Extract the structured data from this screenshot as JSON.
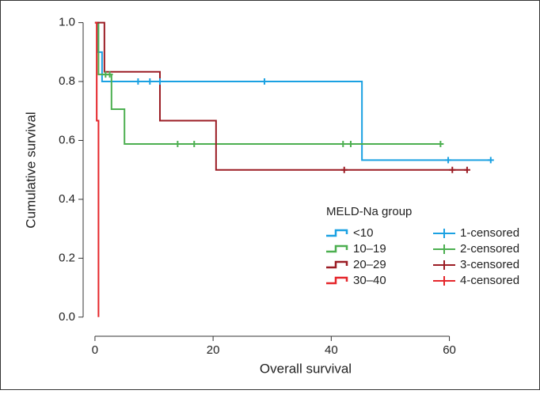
{
  "chart_data": {
    "type": "survival",
    "xlabel": "Overall survival",
    "ylabel": "Cumulative survival",
    "xlim": [
      -2,
      74
    ],
    "ylim": [
      -0.065,
      1.05
    ],
    "xticks": [
      0,
      20,
      40,
      60
    ],
    "yticks": [
      {
        "value": 0,
        "label": "0.0"
      },
      {
        "value": 0.2,
        "label": "0.2"
      },
      {
        "value": 0.4,
        "label": "0.4"
      },
      {
        "value": 0.6,
        "label": "0.6"
      },
      {
        "value": 0.8,
        "label": "0.8"
      },
      {
        "value": 1,
        "label": "1.0"
      }
    ],
    "legend_title": "MELD-Na group",
    "legend_position": "lower right",
    "series": [
      {
        "name": "<10",
        "color": "#1ba1e2",
        "kind": "step",
        "x": [
          0,
          0.5,
          1.2,
          45.2,
          67
        ],
        "values": [
          1,
          0.9,
          0.8,
          0.533,
          0.533
        ]
      },
      {
        "name": "10–19",
        "color": "#4caf50",
        "kind": "step",
        "x": [
          0,
          0.6,
          2.8,
          5,
          58.5
        ],
        "values": [
          1,
          0.824,
          0.706,
          0.588,
          0.588
        ]
      },
      {
        "name": "20–29",
        "color": "#9b1c24",
        "kind": "step",
        "x": [
          0,
          1.6,
          11,
          20.5,
          63
        ],
        "values": [
          1,
          0.833,
          0.667,
          0.5,
          0.5
        ]
      },
      {
        "name": "30–40",
        "color": "#e5262b",
        "kind": "step",
        "x": [
          0,
          0.3,
          0.6
        ],
        "values": [
          1,
          0.667,
          0
        ]
      },
      {
        "name": "1-censored",
        "color": "#1ba1e2",
        "kind": "censored",
        "x": [
          7.3,
          9.3,
          11,
          28.7,
          59.8,
          67
        ],
        "values": [
          0.8,
          0.8,
          0.8,
          0.8,
          0.533,
          0.533
        ]
      },
      {
        "name": "2-censored",
        "color": "#4caf50",
        "kind": "censored",
        "x": [
          1.8,
          2.5,
          14,
          16.8,
          42,
          43.3,
          58.5
        ],
        "values": [
          0.824,
          0.824,
          0.588,
          0.588,
          0.588,
          0.588,
          0.588
        ]
      },
      {
        "name": "3-censored",
        "color": "#9b1c24",
        "kind": "censored",
        "x": [
          42.2,
          60.5,
          63
        ],
        "values": [
          0.5,
          0.5,
          0.5
        ]
      },
      {
        "name": "4-censored",
        "color": "#e5262b",
        "kind": "censored",
        "x": [],
        "values": []
      }
    ]
  }
}
